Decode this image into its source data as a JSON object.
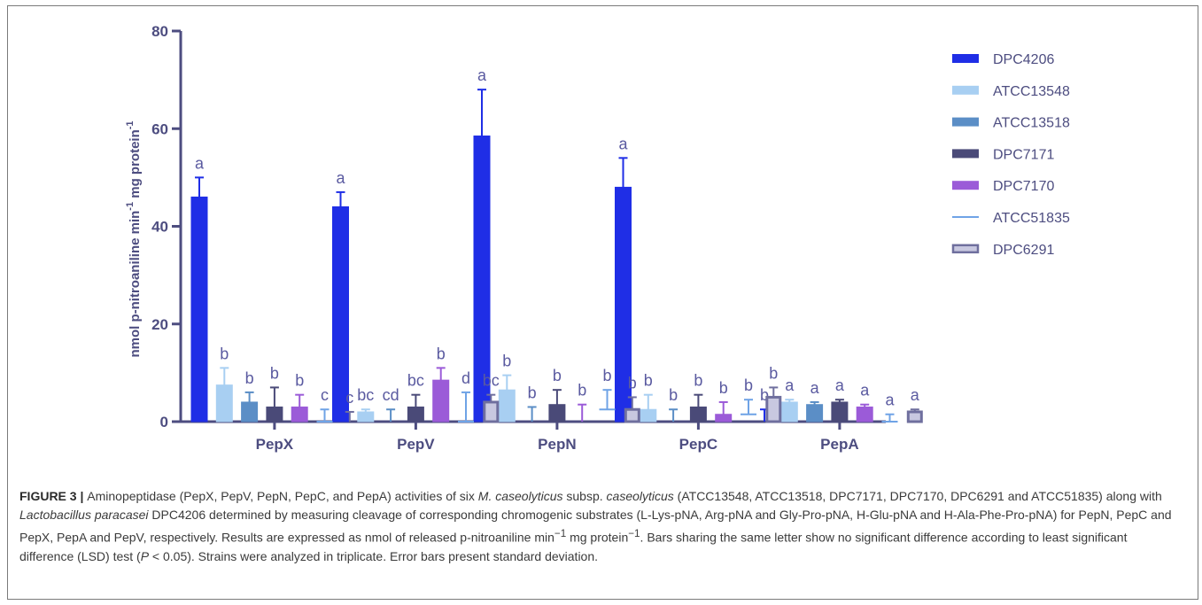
{
  "chart_data": {
    "type": "bar",
    "ylabel_main": "nmol p-nitroaniline min",
    "ylabel_sup1": "-1",
    "ylabel_mid": " mg protein",
    "ylabel_sup2": "-1",
    "ylim": [
      0,
      80
    ],
    "yticks": [
      0,
      20,
      40,
      60,
      80
    ],
    "categories": [
      "PepX",
      "PepV",
      "PepN",
      "PepC",
      "PepA"
    ],
    "legend_position": "top-right",
    "grid": false,
    "series": [
      {
        "name": "DPC4206",
        "color": "#1f2ee6",
        "style": "solid",
        "values": [
          46,
          44,
          58.5,
          48,
          0
        ],
        "errors": [
          4,
          3,
          9.5,
          6,
          2.5
        ],
        "letters": [
          "a",
          "a",
          "a",
          "a",
          "b"
        ]
      },
      {
        "name": "ATCC13548",
        "color": "#a8cff2",
        "style": "solid",
        "values": [
          7.5,
          2,
          6.5,
          2.5,
          4
        ],
        "errors": [
          3.5,
          0.5,
          3,
          3,
          0.5
        ],
        "letters": [
          "b",
          "bc",
          "b",
          "b",
          "a"
        ]
      },
      {
        "name": "ATCC13518",
        "color": "#5b8ec6",
        "style": "solid",
        "values": [
          4,
          0,
          0,
          0,
          3.5
        ],
        "errors": [
          2,
          2.5,
          3,
          2.5,
          0.5
        ],
        "letters": [
          "b",
          "cd",
          "b",
          "b",
          "a"
        ]
      },
      {
        "name": "DPC7171",
        "color": "#4a4a78",
        "style": "solid",
        "values": [
          3,
          3,
          3.5,
          3,
          4
        ],
        "errors": [
          4,
          2.5,
          3,
          2.5,
          0.5
        ],
        "letters": [
          "b",
          "bc",
          "b",
          "b",
          "a"
        ]
      },
      {
        "name": "DPC7170",
        "color": "#9b5bd8",
        "style": "solid",
        "values": [
          3,
          8.5,
          0,
          1.5,
          3
        ],
        "errors": [
          2.5,
          2.5,
          3.5,
          2.5,
          0.5
        ],
        "letters": [
          "b",
          "b",
          "b",
          "b",
          "a"
        ]
      },
      {
        "name": "ATCC51835",
        "color": "#6fa3e6",
        "style": "line",
        "values": [
          0,
          0,
          2.5,
          1.5,
          0
        ],
        "errors": [
          2.5,
          6,
          4,
          3,
          1.5
        ],
        "letters": [
          "c",
          "d",
          "b",
          "b",
          "a"
        ]
      },
      {
        "name": "DPC6291",
        "color": "#6f6f9e",
        "style": "outline",
        "values": [
          0,
          4,
          2.5,
          5,
          2
        ],
        "errors": [
          2,
          1.5,
          2.5,
          2,
          0.5
        ],
        "letters": [
          "c",
          "bc",
          "b",
          "b",
          "a"
        ]
      }
    ]
  },
  "caption": {
    "label": "FIGURE 3",
    "sep": " | ",
    "t1": "Aminopeptidase (PepX, PepV, PepN, PepC, and PepA) activities of six ",
    "t1i": "M. caseolyticus",
    "t2": " subsp. ",
    "t2i": "caseolyticus",
    "t3": " (ATCC13548, ATCC13518, DPC7171, DPC7170, DPC6291 and ATCC51835) along with ",
    "t3i": "Lactobacillus paracasei",
    "t4": " DPC4206 determined by measuring cleavage of corresponding chromogenic substrates (L-Lys-pNA, Arg-pNA and Gly-Pro-pNA, H-Glu-pNA and H-Ala-Phe-Pro-pNA) for PepN, PepC and PepX, PepA and PepV, respectively. Results are expressed as nmol of released p-nitroaniline min",
    "sup1": "−1",
    "t5": " mg protein",
    "sup2": "−1",
    "t6": ". Bars sharing the same letter show no significant difference according to least significant difference (LSD) test (",
    "t6i": "P",
    "t7": " < 0.05). Strains were analyzed in triplicate. Error bars present standard deviation."
  }
}
